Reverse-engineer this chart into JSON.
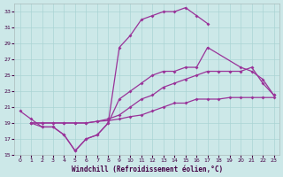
{
  "background_color": "#cce8e8",
  "grid_color": "#aad4d4",
  "line_color": "#993399",
  "marker": "D",
  "markersize": 2.0,
  "linewidth": 0.9,
  "xlim": [
    -0.5,
    23.5
  ],
  "ylim": [
    15,
    34
  ],
  "xticks": [
    0,
    1,
    2,
    3,
    4,
    5,
    6,
    7,
    8,
    9,
    10,
    11,
    12,
    13,
    14,
    15,
    16,
    17,
    18,
    19,
    20,
    21,
    22,
    23
  ],
  "yticks": [
    15,
    17,
    19,
    21,
    23,
    25,
    27,
    29,
    31,
    33
  ],
  "xlabel": "Windchill (Refroidissement éolien,°C)",
  "line1_x": [
    0,
    1,
    2,
    3,
    4,
    5,
    6,
    7,
    8,
    9,
    10,
    11,
    12,
    13,
    14,
    15,
    16,
    17
  ],
  "line1_y": [
    20.5,
    19.5,
    18.5,
    18.5,
    17.5,
    15.5,
    17.0,
    17.5,
    19.0,
    28.5,
    30.0,
    32.0,
    32.5,
    33.0,
    33.0,
    33.5,
    32.5,
    31.5
  ],
  "line2_x": [
    1,
    2,
    3,
    4,
    5,
    6,
    7,
    8,
    9,
    10,
    11,
    12,
    13,
    14,
    15,
    16,
    17,
    20,
    21,
    22,
    23
  ],
  "line2_y": [
    19.0,
    18.5,
    18.5,
    17.5,
    15.5,
    17.0,
    17.5,
    19.0,
    22.0,
    23.0,
    24.0,
    25.0,
    25.5,
    25.5,
    26.0,
    26.0,
    28.5,
    26.0,
    25.5,
    24.5,
    22.5
  ],
  "line3_x": [
    1,
    2,
    3,
    4,
    5,
    6,
    7,
    8,
    9,
    10,
    11,
    12,
    13,
    14,
    15,
    16,
    17,
    18,
    19,
    20,
    21,
    22,
    23
  ],
  "line3_y": [
    19.0,
    19.0,
    19.0,
    19.0,
    19.0,
    19.0,
    19.2,
    19.5,
    20.0,
    21.0,
    22.0,
    22.5,
    23.5,
    24.0,
    24.5,
    25.0,
    25.5,
    25.5,
    25.5,
    25.5,
    26.0,
    24.0,
    22.5
  ],
  "line4_x": [
    1,
    2,
    3,
    4,
    5,
    6,
    7,
    8,
    9,
    10,
    11,
    12,
    13,
    14,
    15,
    16,
    17,
    18,
    19,
    20,
    21,
    22,
    23
  ],
  "line4_y": [
    19.0,
    19.0,
    19.0,
    19.0,
    19.0,
    19.0,
    19.2,
    19.3,
    19.5,
    19.8,
    20.0,
    20.5,
    21.0,
    21.5,
    21.5,
    22.0,
    22.0,
    22.0,
    22.2,
    22.2,
    22.2,
    22.2,
    22.2
  ]
}
